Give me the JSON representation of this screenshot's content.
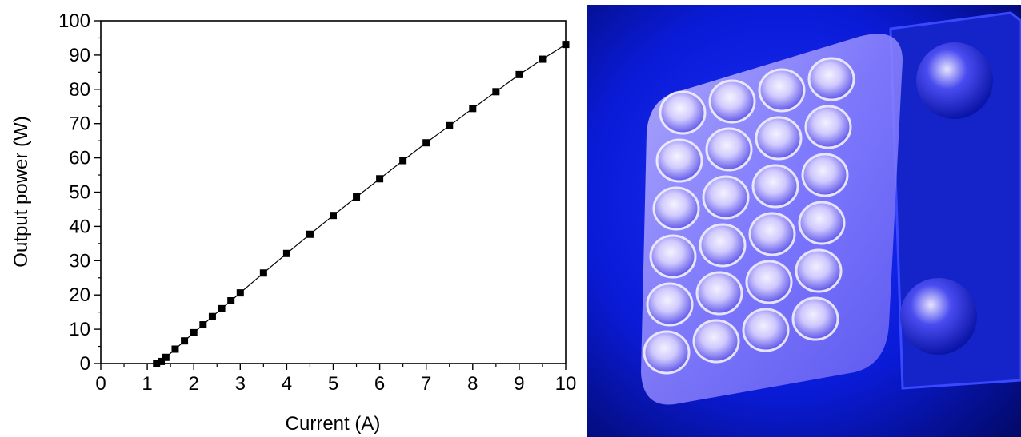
{
  "chart_data": {
    "type": "scatter",
    "xlabel": "Current (A)",
    "ylabel": "Output power (W)",
    "xlim": [
      0,
      10
    ],
    "ylim": [
      0,
      100
    ],
    "x_ticks": [
      0,
      1,
      2,
      3,
      4,
      5,
      6,
      7,
      8,
      9,
      10
    ],
    "y_ticks": [
      0,
      10,
      20,
      30,
      40,
      50,
      60,
      70,
      80,
      90,
      100
    ],
    "grid": false,
    "marker": "square",
    "connected": true,
    "series": [
      {
        "x": [
          1.2,
          1.3,
          1.4,
          1.6,
          1.8,
          2.0,
          2.2,
          2.4,
          2.6,
          2.8,
          3.0,
          3.5,
          4.0,
          4.5,
          5.0,
          5.5,
          6.0,
          6.5,
          7.0,
          7.5,
          8.0,
          8.5,
          9.0,
          9.5,
          10.0
        ],
        "y": [
          0.0,
          0.6,
          1.8,
          4.2,
          6.6,
          9.0,
          11.3,
          13.7,
          16.0,
          18.3,
          20.6,
          26.4,
          32.1,
          37.7,
          43.2,
          48.6,
          53.9,
          59.2,
          64.4,
          69.4,
          74.4,
          79.3,
          84.3,
          88.8,
          93.1
        ]
      }
    ]
  },
  "photo": {
    "colors": {
      "background": "#0a1bd6",
      "dark": "#030a6e",
      "glow": "#eae6ff",
      "lens_tint": "#b9a8ff"
    }
  }
}
